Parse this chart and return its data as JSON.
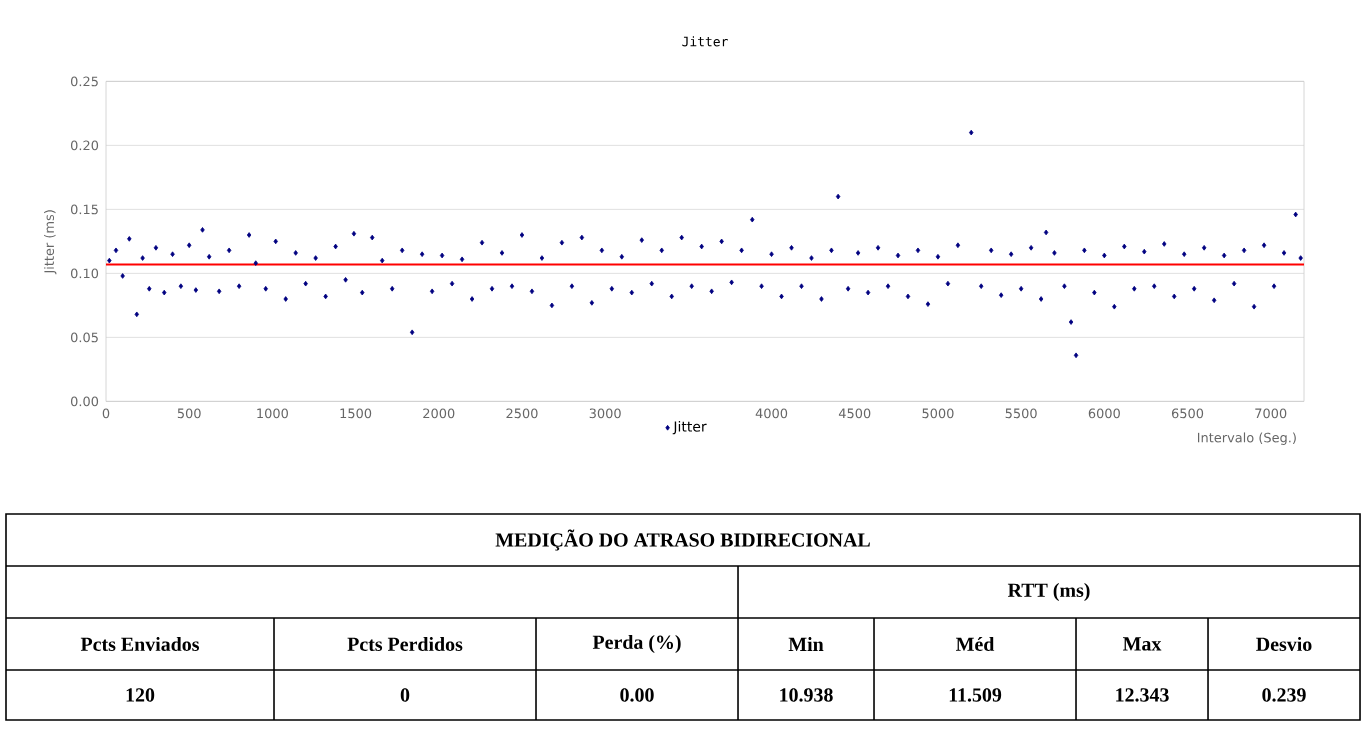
{
  "chart_data": [
    {
      "type": "scatter",
      "title": "Jitter",
      "xlabel": "Intervalo (Seg.)",
      "ylabel": "Jitter (ms)",
      "xlim": [
        0,
        7200
      ],
      "ylim": [
        0,
        0.25
      ],
      "xticks": [
        0,
        500,
        1000,
        1500,
        2000,
        2500,
        3000,
        4000,
        4500,
        5000,
        5500,
        6000,
        6500,
        7000
      ],
      "yticks": [
        {
          "value": 0,
          "label": "0.00"
        },
        0.05,
        {
          "value": 0.1,
          "label": "0.10"
        },
        0.15,
        {
          "value": 0.2,
          "label": "0.20"
        },
        0.25
      ],
      "grid": "y",
      "legend": "bottom",
      "marker": "diamond",
      "x": [
        20,
        60,
        100,
        140,
        185,
        220,
        260,
        300,
        350,
        400,
        450,
        500,
        540,
        580,
        620,
        680,
        740,
        800,
        860,
        900,
        960,
        1020,
        1080,
        1140,
        1200,
        1260,
        1320,
        1380,
        1440,
        1490,
        1540,
        1600,
        1660,
        1720,
        1780,
        1840,
        1900,
        1960,
        2020,
        2080,
        2140,
        2200,
        2260,
        2320,
        2380,
        2440,
        2500,
        2560,
        2620,
        2680,
        2740,
        2800,
        2860,
        2920,
        2980,
        3040,
        3100,
        3160,
        3220,
        3280,
        3340,
        3400,
        3460,
        3520,
        3580,
        3640,
        3700,
        3760,
        3820,
        3884,
        3940,
        4000,
        4060,
        4120,
        4180,
        4240,
        4300,
        4360,
        4400,
        4460,
        4520,
        4580,
        4640,
        4700,
        4760,
        4820,
        4880,
        4940,
        5000,
        5060,
        5120,
        5200,
        5260,
        5320,
        5380,
        5440,
        5500,
        5560,
        5620,
        5650,
        5700,
        5760,
        5800,
        5830,
        5880,
        5940,
        6000,
        6060,
        6120,
        6180,
        6240,
        6300,
        6360,
        6420,
        6480,
        6540,
        6600,
        6660,
        6720,
        6780,
        6840,
        6900,
        6960,
        7020,
        7080,
        7150,
        7180
      ],
      "series": [
        {
          "name": "Jitter",
          "color": "#000080",
          "values": [
            0.11,
            0.118,
            0.098,
            0.127,
            0.068,
            0.112,
            0.088,
            0.12,
            0.085,
            0.115,
            0.09,
            0.122,
            0.087,
            0.134,
            0.113,
            0.086,
            0.118,
            0.09,
            0.13,
            0.108,
            0.088,
            0.125,
            0.08,
            0.116,
            0.092,
            0.112,
            0.082,
            0.121,
            0.095,
            0.131,
            0.085,
            0.128,
            0.11,
            0.088,
            0.118,
            0.054,
            0.115,
            0.086,
            0.114,
            0.092,
            0.111,
            0.08,
            0.124,
            0.088,
            0.116,
            0.09,
            0.13,
            0.086,
            0.112,
            0.075,
            0.124,
            0.09,
            0.128,
            0.077,
            0.118,
            0.088,
            0.113,
            0.085,
            0.126,
            0.092,
            0.118,
            0.082,
            0.128,
            0.09,
            0.121,
            0.086,
            0.125,
            0.093,
            0.118,
            0.142,
            0.09,
            0.115,
            0.082,
            0.12,
            0.09,
            0.112,
            0.08,
            0.118,
            0.16,
            0.088,
            0.116,
            0.085,
            0.12,
            0.09,
            0.114,
            0.082,
            0.118,
            0.076,
            0.113,
            0.092,
            0.122,
            0.21,
            0.09,
            0.118,
            0.083,
            0.115,
            0.088,
            0.12,
            0.08,
            0.132,
            0.116,
            0.09,
            0.062,
            0.036,
            0.118,
            0.085,
            0.114,
            0.074,
            0.121,
            0.088,
            0.117,
            0.09,
            0.123,
            0.082,
            0.115,
            0.088,
            0.12,
            0.079,
            0.114,
            0.092,
            0.118,
            0.074,
            0.122,
            0.09,
            0.116,
            0.146,
            0.112
          ]
        }
      ],
      "ref_lines": [
        {
          "axis": "y",
          "value": 0.107,
          "color": "#ff0000"
        }
      ]
    },
    {
      "type": "other",
      "title": "MEDIÇÃO DO ATRASO BIDIRECIONAL",
      "annotations": [
        "RTT (ms)",
        "Pcts Enviados",
        "Pcts Perdidos",
        "Perda (%)",
        "Min",
        "Méd",
        "Max",
        "Desvio",
        "120",
        "0",
        "0.00",
        "10.938",
        "11.509",
        "12.343",
        "0.239"
      ]
    }
  ]
}
